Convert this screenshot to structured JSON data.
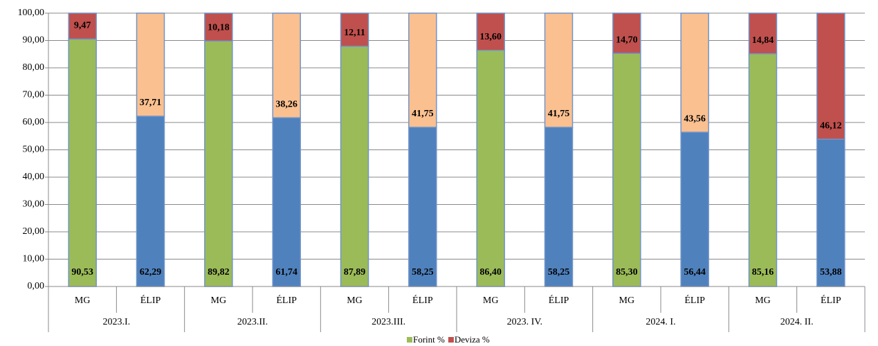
{
  "chart_data": {
    "type": "stacked_bar",
    "categories": [
      "MG",
      "ÉLIP",
      "MG",
      "ÉLIP",
      "MG",
      "ÉLIP",
      "MG",
      "ÉLIP",
      "MG",
      "ÉLIP",
      "MG",
      "ÉLIP"
    ],
    "groups": [
      "2023.I.",
      "2023.II.",
      "2023.III.",
      "2023. IV.",
      "2024. I.",
      "2024. II."
    ],
    "series": [
      {
        "name": "Forint %",
        "color": "#9bbb59",
        "point_colors": [
          "#9bbb59",
          "#4f81bd",
          "#9bbb59",
          "#4f81bd",
          "#9bbb59",
          "#4f81bd",
          "#9bbb59",
          "#4f81bd",
          "#9bbb59",
          "#4f81bd",
          "#9bbb59",
          "#4f81bd"
        ],
        "values": [
          90.53,
          62.29,
          89.82,
          61.74,
          87.89,
          58.25,
          86.4,
          58.25,
          85.3,
          56.44,
          85.16,
          53.88
        ],
        "value_labels": [
          "90,53",
          "62,29",
          "89,82",
          "61,74",
          "87,89",
          "58,25",
          "86,40",
          "58,25",
          "85,30",
          "56,44",
          "85,16",
          "53,88"
        ]
      },
      {
        "name": "Deviza %",
        "color": "#c0504d",
        "point_colors": [
          "#c0504d",
          "#fac090",
          "#c0504d",
          "#fac090",
          "#c0504d",
          "#fac090",
          "#c0504d",
          "#fac090",
          "#c0504d",
          "#fac090",
          "#c0504d",
          "#c0504d"
        ],
        "values": [
          9.47,
          37.71,
          10.18,
          38.26,
          12.11,
          41.75,
          13.6,
          41.75,
          14.7,
          43.56,
          14.84,
          46.12
        ],
        "value_labels": [
          "9,47",
          "37,71",
          "10,18",
          "38,26",
          "12,11",
          "41,75",
          "13,60",
          "41,75",
          "14,70",
          "43,56",
          "14,84",
          "46,12"
        ]
      }
    ],
    "ylim": [
      0,
      100
    ],
    "yticks": [
      {
        "value": 0,
        "label": "0,00"
      },
      {
        "value": 10,
        "label": "10,00"
      },
      {
        "value": 20,
        "label": "20,00"
      },
      {
        "value": 30,
        "label": "30,00"
      },
      {
        "value": 40,
        "label": "40,00"
      },
      {
        "value": 50,
        "label": "50,00"
      },
      {
        "value": 60,
        "label": "60,00"
      },
      {
        "value": 70,
        "label": "70,00"
      },
      {
        "value": 80,
        "label": "80,00"
      },
      {
        "value": 90,
        "label": "90,00"
      },
      {
        "value": 100,
        "label": "100,00"
      }
    ],
    "grid": true,
    "legend": "bottom"
  }
}
